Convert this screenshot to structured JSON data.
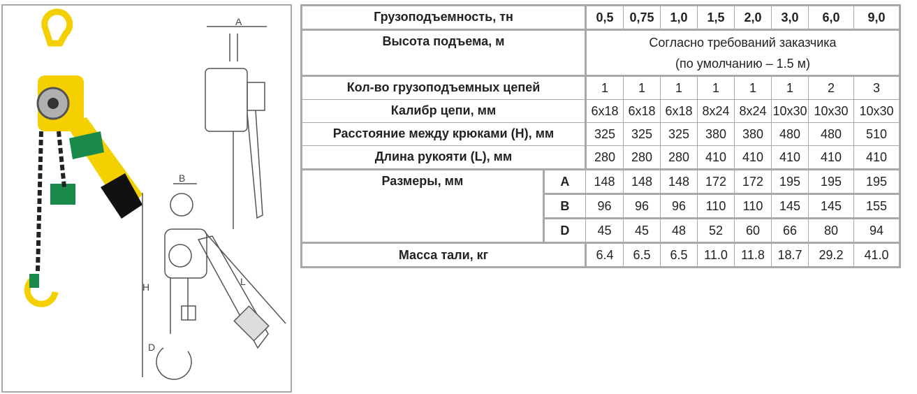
{
  "table": {
    "capacity": {
      "label": "Грузоподъемность, тн",
      "values": [
        "0,5",
        "0,75",
        "1,0",
        "1,5",
        "2,0",
        "3,0",
        "6,0",
        "9,0"
      ]
    },
    "lift_height": {
      "label": "Высота подъема, м",
      "line1": "Согласно требований заказчика",
      "line2": "(по умолчанию – 1.5 м)"
    },
    "chains": {
      "label": "Кол-во грузоподъемных цепей",
      "values": [
        "1",
        "1",
        "1",
        "1",
        "1",
        "1",
        "2",
        "3"
      ]
    },
    "chain_gauge": {
      "label": "Калибр цепи, мм",
      "values": [
        "6x18",
        "6x18",
        "6x18",
        "8x24",
        "8x24",
        "10x30",
        "10x30",
        "10x30"
      ]
    },
    "hook_distance": {
      "label": "Расстояние между крюками (H), мм",
      "values": [
        "325",
        "325",
        "325",
        "380",
        "380",
        "480",
        "480",
        "510"
      ]
    },
    "handle_length": {
      "label": "Длина рукояти (L), мм",
      "values": [
        "280",
        "280",
        "280",
        "410",
        "410",
        "410",
        "410",
        "410"
      ]
    },
    "dimensions": {
      "label": "Размеры, мм",
      "A": {
        "label": "A",
        "values": [
          "148",
          "148",
          "148",
          "172",
          "172",
          "195",
          "195",
          "195"
        ]
      },
      "B": {
        "label": "B",
        "values": [
          "96",
          "96",
          "96",
          "110",
          "110",
          "145",
          "145",
          "155"
        ]
      },
      "D": {
        "label": "D",
        "values": [
          "45",
          "45",
          "48",
          "52",
          "60",
          "66",
          "80",
          "94"
        ]
      }
    },
    "weight": {
      "label": "Масса тали, кг",
      "values": [
        "6.4",
        "6.5",
        "6.5",
        "11.0",
        "11.8",
        "18.7",
        "29.2",
        "41.0"
      ]
    }
  },
  "drawing": {
    "dim_A": "A",
    "dim_B": "B",
    "dim_H": "H",
    "dim_L": "L",
    "dim_D": "D"
  },
  "colors": {
    "hoist_yellow": "#f5d000",
    "accent_green": "#1a8a4a",
    "border": "#a8a8a8"
  }
}
